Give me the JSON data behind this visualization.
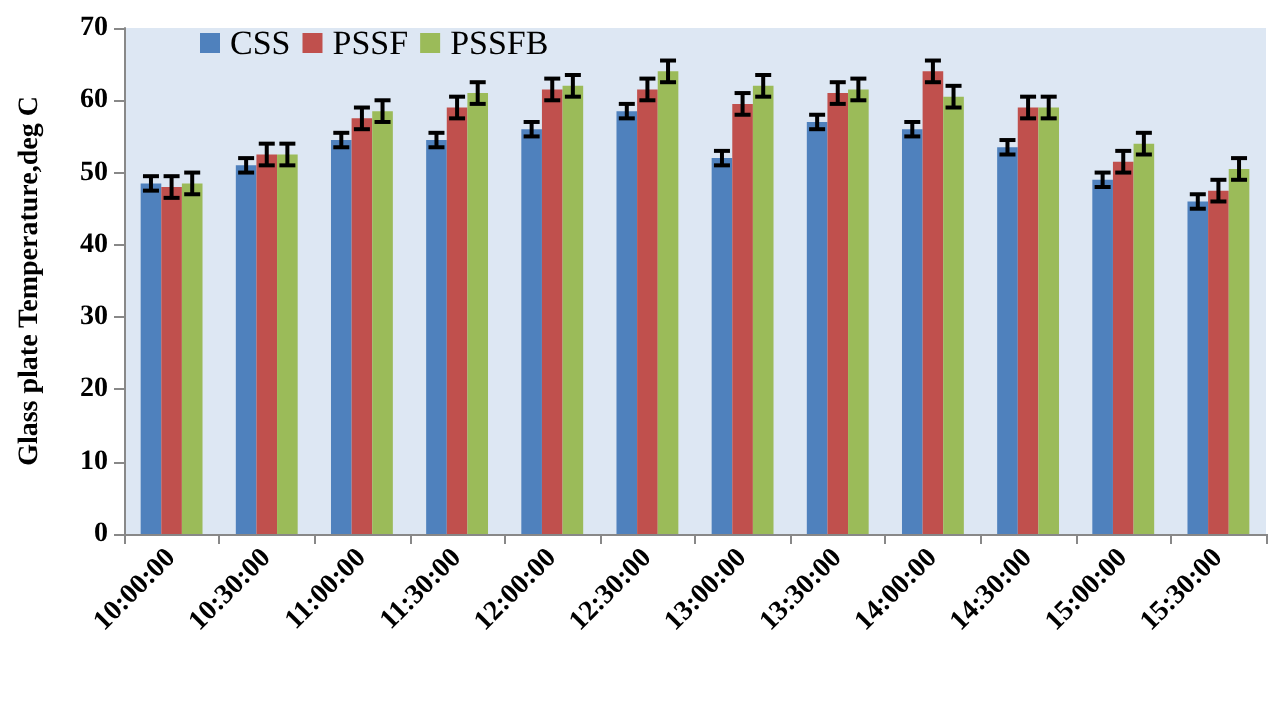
{
  "chart_data": {
    "type": "bar",
    "ylabel": "Glass plate Temperature,deg C",
    "categories": [
      "10:00:00",
      "10:30:00",
      "11:00:00",
      "11:30:00",
      "12:00:00",
      "12:30:00",
      "13:00:00",
      "13:30:00",
      "14:00:00",
      "14:30:00",
      "15:00:00",
      "15:30:00"
    ],
    "series": [
      {
        "name": "CSS",
        "color": "#4f81bd",
        "values": [
          48.5,
          51,
          54.5,
          54.5,
          56,
          58.5,
          52,
          57,
          56,
          53.5,
          49,
          46
        ],
        "errors": [
          1,
          1,
          1,
          1,
          1,
          1,
          1,
          1,
          1,
          1,
          1,
          1
        ]
      },
      {
        "name": "PSSF",
        "color": "#c0504d",
        "values": [
          48,
          52.5,
          57.5,
          59,
          61.5,
          61.5,
          59.5,
          61,
          64,
          59,
          51.5,
          47.5
        ],
        "errors": [
          1.5,
          1.5,
          1.5,
          1.5,
          1.5,
          1.5,
          1.5,
          1.5,
          1.5,
          1.5,
          1.5,
          1.5
        ]
      },
      {
        "name": "PSSFB",
        "color": "#9bbb59",
        "values": [
          48.5,
          52.5,
          58.5,
          61,
          62,
          64,
          62,
          61.5,
          60.5,
          59,
          54,
          50.5
        ],
        "errors": [
          1.5,
          1.5,
          1.5,
          1.5,
          1.5,
          1.5,
          1.5,
          1.5,
          1.5,
          1.5,
          1.5,
          1.5
        ]
      }
    ],
    "ylim": [
      0,
      70
    ],
    "yticks": [
      0,
      10,
      20,
      30,
      40,
      50,
      60,
      70
    ],
    "grid": false,
    "legend": "top left"
  }
}
